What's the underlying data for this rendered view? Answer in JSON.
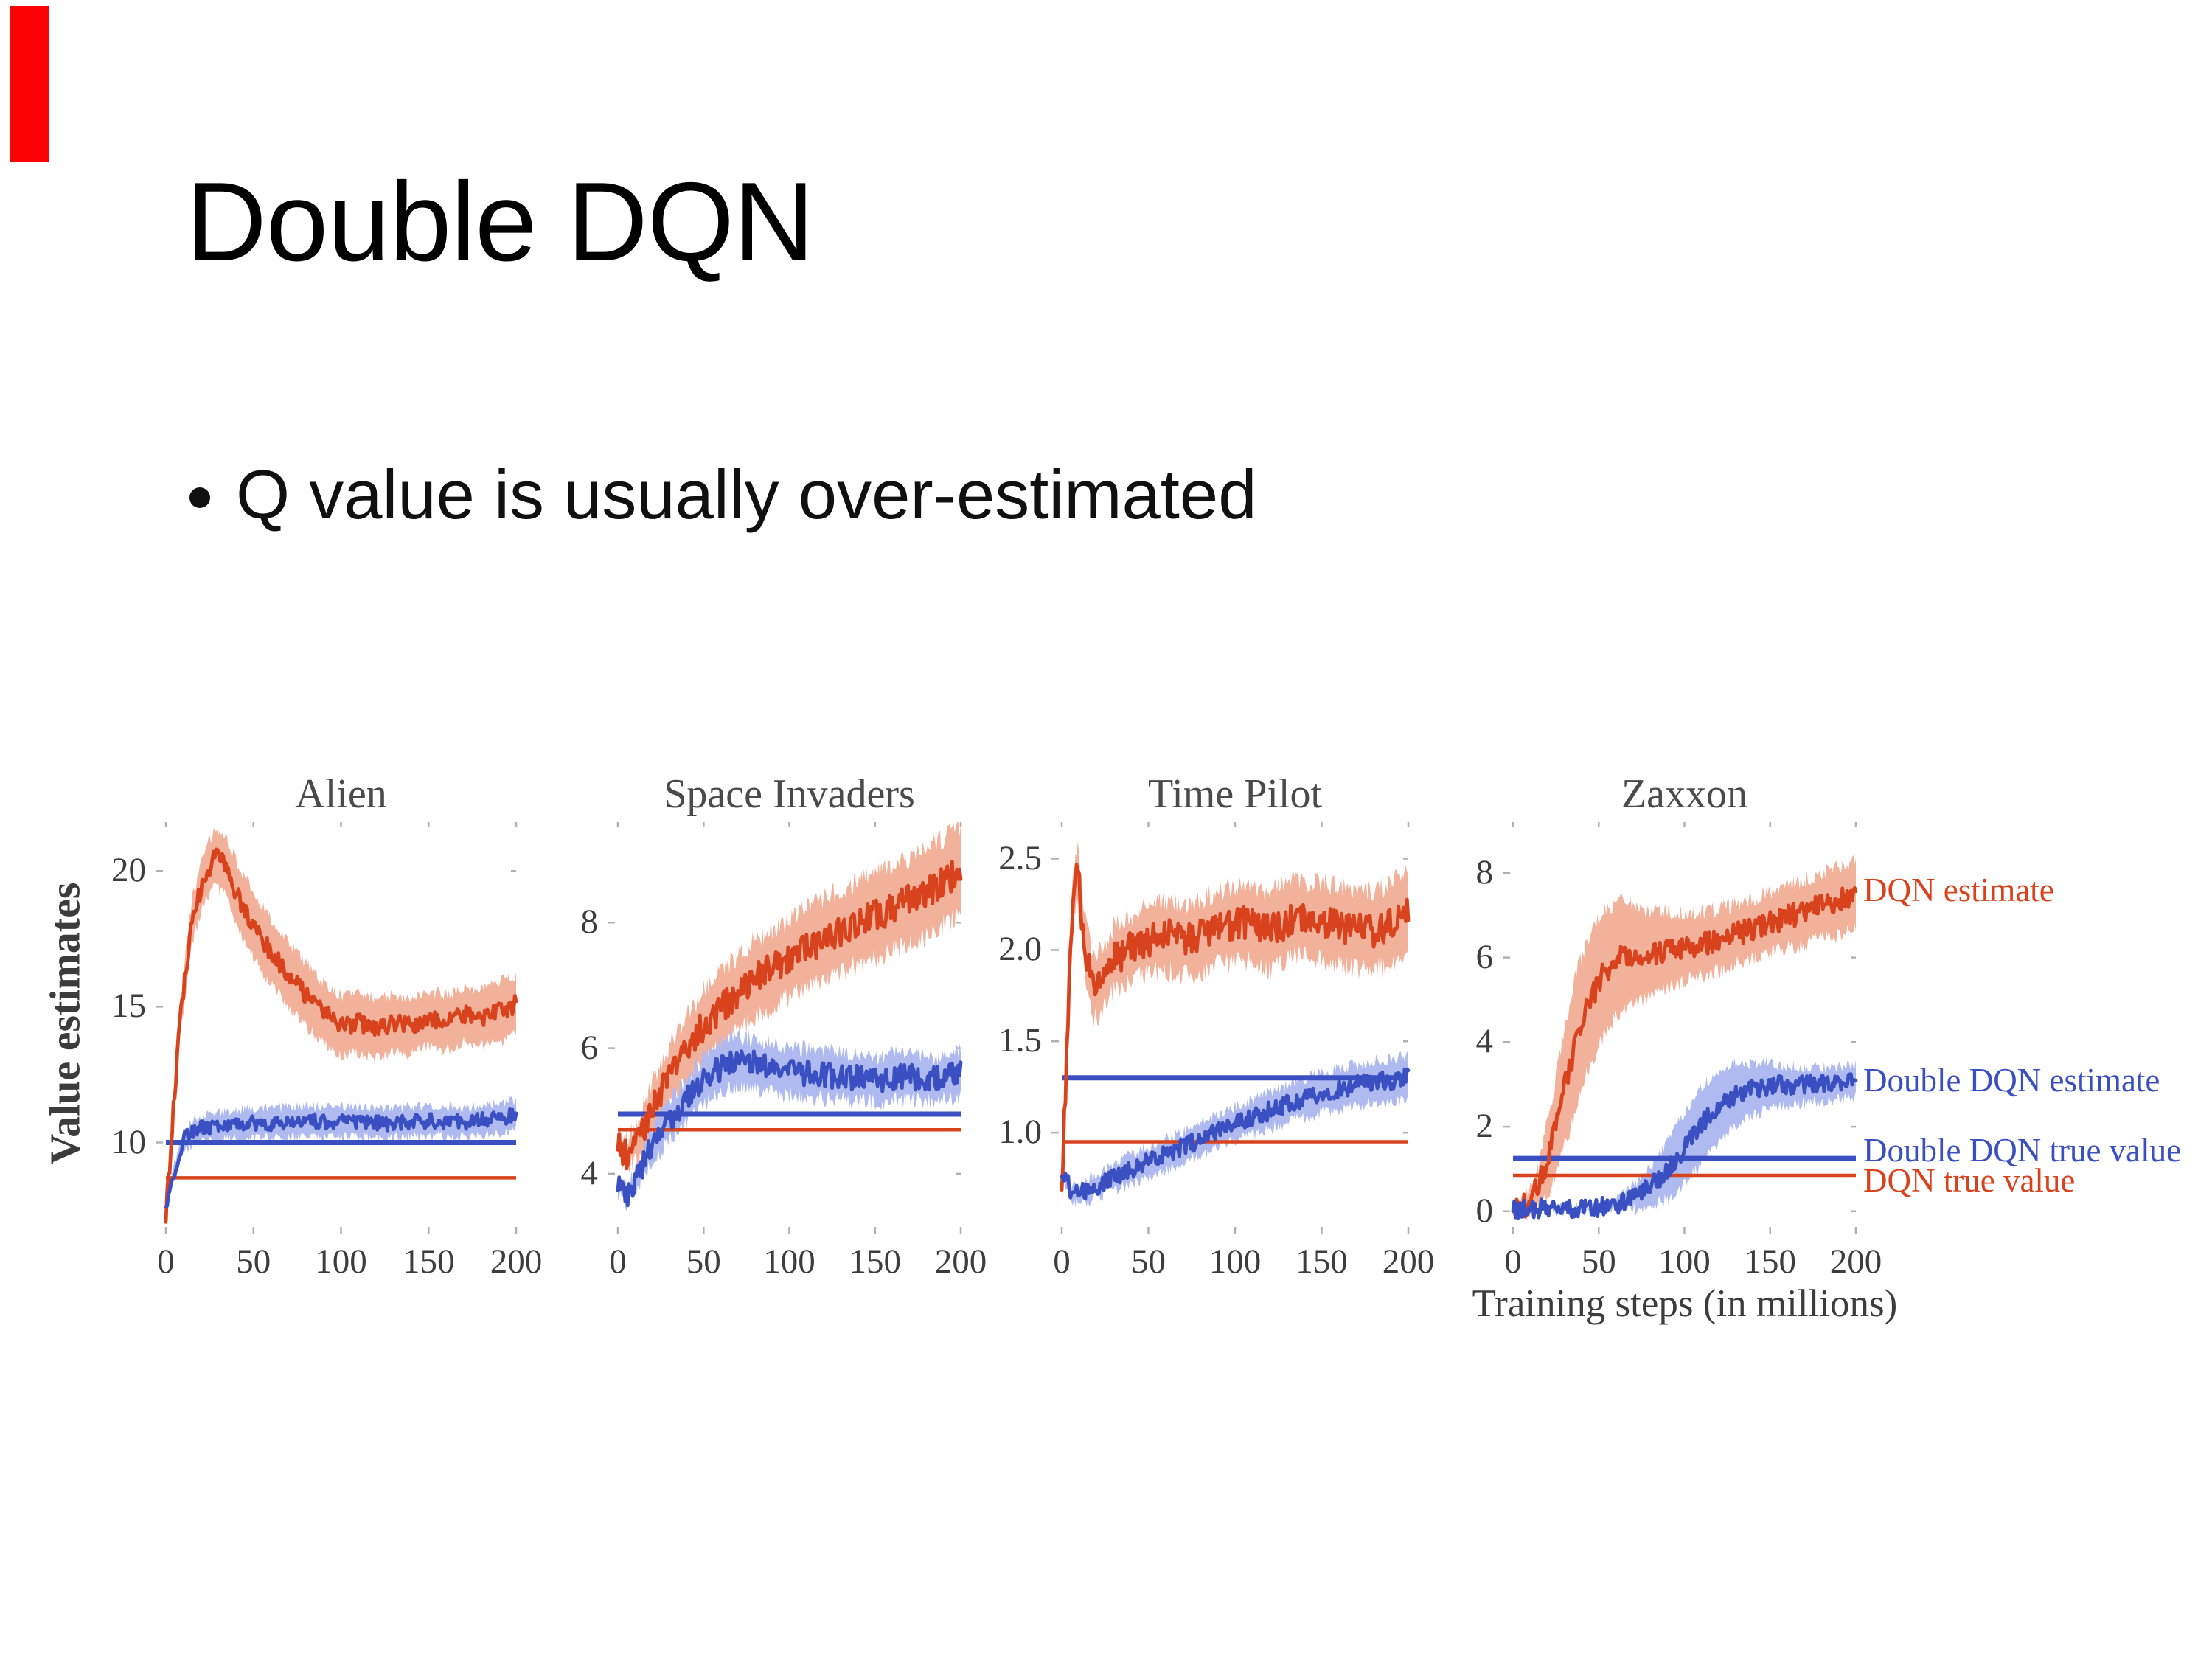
{
  "slide": {
    "title": "Double DQN",
    "bullet": "Q value is usually over-estimated",
    "accent_color": "#fb0207"
  },
  "figure": {
    "y_axis_label": "Value estimates",
    "x_axis_label": "Training steps (in millions)",
    "colors": {
      "dqn": "#d8431d",
      "dqn_band": "#f2b19b",
      "ddqn": "#3a50c2",
      "ddqn_band": "#aebaf0",
      "text": "#4a4a4a"
    },
    "legend": [
      {
        "label": "DQN estimate",
        "color_key": "dqn",
        "y_value": 7.6
      },
      {
        "label": "Double DQN estimate",
        "color_key": "ddqn",
        "y_value": 3.1
      },
      {
        "label": "Double DQN true value",
        "color_key": "ddqn",
        "y_value": 1.45
      },
      {
        "label": "DQN true value",
        "color_key": "dqn",
        "y_value": 0.72
      }
    ]
  },
  "chart_data": [
    {
      "type": "line",
      "title": "Alien",
      "xlabel": "Training steps (in millions)",
      "ylabel": "Value estimates",
      "xlim": [
        0,
        200
      ],
      "xticks": [
        0,
        50,
        100,
        150,
        200
      ],
      "xtick_labels": [
        "0",
        "50",
        "100",
        "150",
        "200"
      ],
      "ylim": [
        7.0,
        21.8
      ],
      "yticks": [
        10,
        15,
        20
      ],
      "ytick_labels": [
        "10",
        "15",
        "20"
      ],
      "series": [
        {
          "name": "DQN estimate",
          "color_key": "dqn",
          "noise": 0.34,
          "keypoints": [
            [
              0,
              7.2
            ],
            [
              3,
              10.0
            ],
            [
              8,
              14.5
            ],
            [
              15,
              18.2
            ],
            [
              22,
              19.8
            ],
            [
              28,
              20.5
            ],
            [
              33,
              20.3
            ],
            [
              40,
              19.2
            ],
            [
              50,
              18.0
            ],
            [
              60,
              17.0
            ],
            [
              70,
              16.2
            ],
            [
              80,
              15.4
            ],
            [
              90,
              14.8
            ],
            [
              100,
              14.3
            ],
            [
              110,
              14.4
            ],
            [
              120,
              14.2
            ],
            [
              130,
              14.4
            ],
            [
              140,
              14.3
            ],
            [
              150,
              14.6
            ],
            [
              160,
              14.4
            ],
            [
              170,
              14.7
            ],
            [
              180,
              14.6
            ],
            [
              190,
              14.8
            ],
            [
              200,
              15.1
            ]
          ],
          "spread": [
            [
              0,
              0.15
            ],
            [
              10,
              0.7
            ],
            [
              25,
              1.0
            ],
            [
              40,
              1.2
            ],
            [
              70,
              1.2
            ],
            [
              100,
              1.1
            ],
            [
              150,
              1.0
            ],
            [
              200,
              1.1
            ]
          ]
        },
        {
          "name": "Double DQN estimate",
          "color_key": "ddqn",
          "noise": 0.28,
          "keypoints": [
            [
              0,
              7.6
            ],
            [
              4,
              8.8
            ],
            [
              10,
              10.1
            ],
            [
              18,
              10.5
            ],
            [
              30,
              10.6
            ],
            [
              50,
              10.7
            ],
            [
              75,
              10.75
            ],
            [
              100,
              10.8
            ],
            [
              125,
              10.7
            ],
            [
              150,
              10.8
            ],
            [
              175,
              10.75
            ],
            [
              200,
              11.0
            ]
          ],
          "spread": [
            [
              0,
              0.1
            ],
            [
              12,
              0.45
            ],
            [
              50,
              0.55
            ],
            [
              200,
              0.55
            ]
          ]
        }
      ],
      "hlines": [
        {
          "name": "Double DQN true value",
          "color_key": "ddqn",
          "value": 10.0,
          "width": 7
        },
        {
          "name": "DQN true value",
          "color_key": "dqn",
          "value": 8.7,
          "width": 4.5
        }
      ]
    },
    {
      "type": "line",
      "title": "Space Invaders",
      "xlim": [
        0,
        200
      ],
      "xticks": [
        0,
        50,
        100,
        150,
        200
      ],
      "xtick_labels": [
        "0",
        "50",
        "100",
        "150",
        "200"
      ],
      "ylim": [
        3.2,
        9.6
      ],
      "yticks": [
        4,
        6,
        8
      ],
      "ytick_labels": [
        "4",
        "6",
        "8"
      ],
      "series": [
        {
          "name": "DQN estimate",
          "color_key": "dqn",
          "noise": 0.25,
          "keypoints": [
            [
              0,
              4.6
            ],
            [
              4,
              4.3
            ],
            [
              10,
              4.45
            ],
            [
              20,
              5.0
            ],
            [
              30,
              5.55
            ],
            [
              40,
              6.0
            ],
            [
              50,
              6.35
            ],
            [
              65,
              6.75
            ],
            [
              80,
              7.1
            ],
            [
              95,
              7.35
            ],
            [
              110,
              7.6
            ],
            [
              125,
              7.8
            ],
            [
              140,
              8.0
            ],
            [
              155,
              8.15
            ],
            [
              170,
              8.35
            ],
            [
              185,
              8.55
            ],
            [
              200,
              8.85
            ]
          ],
          "spread": [
            [
              0,
              0.12
            ],
            [
              20,
              0.45
            ],
            [
              60,
              0.6
            ],
            [
              120,
              0.65
            ],
            [
              200,
              0.7
            ]
          ]
        },
        {
          "name": "Double DQN estimate",
          "color_key": "ddqn",
          "noise": 0.2,
          "keypoints": [
            [
              0,
              3.8
            ],
            [
              5,
              3.65
            ],
            [
              12,
              4.0
            ],
            [
              20,
              4.45
            ],
            [
              30,
              4.85
            ],
            [
              42,
              5.25
            ],
            [
              55,
              5.6
            ],
            [
              68,
              5.8
            ],
            [
              80,
              5.75
            ],
            [
              95,
              5.65
            ],
            [
              110,
              5.6
            ],
            [
              130,
              5.55
            ],
            [
              150,
              5.5
            ],
            [
              170,
              5.55
            ],
            [
              185,
              5.5
            ],
            [
              200,
              5.6
            ]
          ],
          "spread": [
            [
              0,
              0.08
            ],
            [
              25,
              0.3
            ],
            [
              60,
              0.4
            ],
            [
              120,
              0.38
            ],
            [
              200,
              0.35
            ]
          ]
        }
      ],
      "hlines": [
        {
          "name": "Double DQN true value",
          "color_key": "ddqn",
          "value": 4.95,
          "width": 7
        },
        {
          "name": "DQN true value",
          "color_key": "dqn",
          "value": 4.7,
          "width": 4.5
        }
      ]
    },
    {
      "type": "line",
      "title": "Time Pilot",
      "xlim": [
        0,
        200
      ],
      "xticks": [
        0,
        50,
        100,
        150,
        200
      ],
      "xtick_labels": [
        "0",
        "50",
        "100",
        "150",
        "200"
      ],
      "ylim": [
        0.5,
        2.7
      ],
      "yticks": [
        1.0,
        1.5,
        2.0,
        2.5
      ],
      "ytick_labels": [
        "1.0",
        "1.5",
        "2.0",
        "2.5"
      ],
      "series": [
        {
          "name": "DQN estimate",
          "color_key": "dqn",
          "noise": 0.09,
          "keypoints": [
            [
              0,
              0.62
            ],
            [
              3,
              1.5
            ],
            [
              6,
              2.2
            ],
            [
              9,
              2.45
            ],
            [
              13,
              2.05
            ],
            [
              18,
              1.78
            ],
            [
              24,
              1.85
            ],
            [
              30,
              1.95
            ],
            [
              38,
              2.0
            ],
            [
              48,
              2.05
            ],
            [
              60,
              2.08
            ],
            [
              75,
              2.05
            ],
            [
              90,
              2.12
            ],
            [
              105,
              2.15
            ],
            [
              120,
              2.1
            ],
            [
              135,
              2.18
            ],
            [
              150,
              2.15
            ],
            [
              165,
              2.12
            ],
            [
              180,
              2.1
            ],
            [
              200,
              2.2
            ]
          ],
          "spread": [
            [
              0,
              0.06
            ],
            [
              8,
              0.15
            ],
            [
              30,
              0.18
            ],
            [
              80,
              0.2
            ],
            [
              200,
              0.22
            ]
          ]
        },
        {
          "name": "Double DQN estimate",
          "color_key": "ddqn",
          "noise": 0.05,
          "keypoints": [
            [
              0,
              0.78
            ],
            [
              6,
              0.67
            ],
            [
              15,
              0.68
            ],
            [
              25,
              0.73
            ],
            [
              35,
              0.78
            ],
            [
              45,
              0.82
            ],
            [
              55,
              0.86
            ],
            [
              70,
              0.92
            ],
            [
              85,
              0.99
            ],
            [
              100,
              1.05
            ],
            [
              115,
              1.1
            ],
            [
              130,
              1.16
            ],
            [
              145,
              1.2
            ],
            [
              160,
              1.24
            ],
            [
              175,
              1.27
            ],
            [
              200,
              1.3
            ]
          ],
          "spread": [
            [
              0,
              0.04
            ],
            [
              40,
              0.08
            ],
            [
              120,
              0.1
            ],
            [
              200,
              0.12
            ]
          ]
        }
      ],
      "hlines": [
        {
          "name": "Double DQN true value",
          "color_key": "ddqn",
          "value": 1.3,
          "width": 7
        },
        {
          "name": "DQN true value",
          "color_key": "dqn",
          "value": 0.95,
          "width": 4.5
        }
      ]
    },
    {
      "type": "line",
      "title": "Zaxxon",
      "xlim": [
        0,
        200
      ],
      "xticks": [
        0,
        50,
        100,
        150,
        200
      ],
      "xtick_labels": [
        "0",
        "50",
        "100",
        "150",
        "200"
      ],
      "ylim": [
        -0.3,
        9.2
      ],
      "yticks": [
        0,
        2,
        4,
        6,
        8
      ],
      "ytick_labels": [
        "0",
        "2",
        "4",
        "6",
        "8"
      ],
      "series": [
        {
          "name": "DQN estimate",
          "color_key": "dqn",
          "noise": 0.28,
          "keypoints": [
            [
              0,
              0.05
            ],
            [
              8,
              0.15
            ],
            [
              15,
              0.6
            ],
            [
              22,
              1.5
            ],
            [
              30,
              2.9
            ],
            [
              38,
              4.2
            ],
            [
              46,
              5.1
            ],
            [
              54,
              5.7
            ],
            [
              62,
              6.0
            ],
            [
              70,
              6.1
            ],
            [
              80,
              6.1
            ],
            [
              90,
              6.2
            ],
            [
              100,
              6.25
            ],
            [
              115,
              6.35
            ],
            [
              130,
              6.55
            ],
            [
              145,
              6.75
            ],
            [
              160,
              6.95
            ],
            [
              175,
              7.15
            ],
            [
              190,
              7.35
            ],
            [
              200,
              7.5
            ]
          ],
          "spread": [
            [
              0,
              0.04
            ],
            [
              12,
              0.3
            ],
            [
              22,
              1.0
            ],
            [
              35,
              1.6
            ],
            [
              50,
              1.5
            ],
            [
              65,
              1.3
            ],
            [
              80,
              1.0
            ],
            [
              100,
              0.8
            ],
            [
              130,
              0.7
            ],
            [
              170,
              0.75
            ],
            [
              200,
              0.8
            ]
          ]
        },
        {
          "name": "Double DQN estimate",
          "color_key": "ddqn",
          "noise": 0.22,
          "keypoints": [
            [
              0,
              0.05
            ],
            [
              30,
              0.07
            ],
            [
              50,
              0.1
            ],
            [
              62,
              0.18
            ],
            [
              72,
              0.35
            ],
            [
              82,
              0.65
            ],
            [
              92,
              1.05
            ],
            [
              102,
              1.6
            ],
            [
              112,
              2.15
            ],
            [
              122,
              2.55
            ],
            [
              132,
              2.8
            ],
            [
              142,
              2.9
            ],
            [
              152,
              3.0
            ],
            [
              162,
              2.95
            ],
            [
              172,
              3.0
            ],
            [
              182,
              3.0
            ],
            [
              192,
              3.05
            ],
            [
              200,
              3.1
            ]
          ],
          "spread": [
            [
              0,
              0.02
            ],
            [
              60,
              0.08
            ],
            [
              80,
              0.45
            ],
            [
              95,
              0.8
            ],
            [
              110,
              0.9
            ],
            [
              125,
              0.8
            ],
            [
              140,
              0.6
            ],
            [
              160,
              0.45
            ],
            [
              200,
              0.35
            ]
          ]
        }
      ],
      "hlines": [
        {
          "name": "Double DQN true value",
          "color_key": "ddqn",
          "value": 1.25,
          "width": 7
        },
        {
          "name": "DQN true value",
          "color_key": "dqn",
          "value": 0.85,
          "width": 4.5
        }
      ]
    }
  ]
}
